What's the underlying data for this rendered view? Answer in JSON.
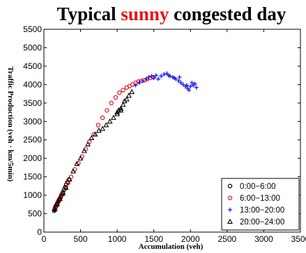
{
  "chart_data": {
    "type": "scatter",
    "title_parts": [
      {
        "text": "Typical ",
        "color": "#000000"
      },
      {
        "text": "sunny",
        "color": "#e8101a"
      },
      {
        "text": " congested day",
        "color": "#000000"
      }
    ],
    "xlabel": "Accumulation (veh)",
    "ylabel": "Traffic Production (veh · km/5min)",
    "xlim": [
      0,
      3500
    ],
    "ylim": [
      0,
      5500
    ],
    "xticks": [
      0,
      500,
      1000,
      1500,
      2000,
      2500,
      3000,
      3500
    ],
    "yticks": [
      0,
      500,
      1000,
      1500,
      2000,
      2500,
      3000,
      3500,
      4000,
      4500,
      5000,
      5500
    ],
    "grid": false,
    "legend_position": "bottom-right",
    "series": [
      {
        "name": "0:00−6:00",
        "marker": "circle-open",
        "color": "#000000",
        "points": [
          [
            140,
            580
          ],
          [
            145,
            610
          ],
          [
            150,
            640
          ],
          [
            155,
            660
          ],
          [
            160,
            700
          ],
          [
            165,
            690
          ],
          [
            170,
            720
          ],
          [
            175,
            740
          ],
          [
            180,
            760
          ],
          [
            185,
            780
          ],
          [
            190,
            810
          ],
          [
            200,
            850
          ],
          [
            210,
            880
          ],
          [
            220,
            920
          ],
          [
            230,
            960
          ],
          [
            240,
            1000
          ],
          [
            250,
            1040
          ],
          [
            260,
            1080
          ],
          [
            275,
            1150
          ],
          [
            290,
            1220
          ],
          [
            305,
            1290
          ],
          [
            320,
            1350
          ],
          [
            340,
            1420
          ]
        ]
      },
      {
        "name": "6:00−13:00",
        "marker": "circle-open",
        "color": "#e8101a",
        "points": [
          [
            150,
            620
          ],
          [
            175,
            720
          ],
          [
            200,
            830
          ],
          [
            230,
            940
          ],
          [
            260,
            1050
          ],
          [
            300,
            1200
          ],
          [
            330,
            1330
          ],
          [
            370,
            1500
          ],
          [
            420,
            1700
          ],
          [
            470,
            1870
          ],
          [
            520,
            2050
          ],
          [
            570,
            2250
          ],
          [
            620,
            2450
          ],
          [
            680,
            2650
          ],
          [
            740,
            2900
          ],
          [
            800,
            3100
          ],
          [
            860,
            3300
          ],
          [
            920,
            3500
          ],
          [
            980,
            3650
          ],
          [
            1030,
            3780
          ],
          [
            1080,
            3850
          ],
          [
            1130,
            3920
          ],
          [
            1170,
            3960
          ],
          [
            1210,
            4000
          ],
          [
            1250,
            4050
          ],
          [
            1290,
            4080
          ],
          [
            1330,
            4100
          ],
          [
            1370,
            4120
          ],
          [
            1410,
            4150
          ],
          [
            1450,
            4180
          ],
          [
            1490,
            4200
          ]
        ]
      },
      {
        "name": "13:00−20:00",
        "marker": "plus",
        "color": "#1a1ae6",
        "points": [
          [
            1250,
            3980
          ],
          [
            1300,
            4050
          ],
          [
            1350,
            4100
          ],
          [
            1400,
            4150
          ],
          [
            1430,
            4200
          ],
          [
            1470,
            4230
          ],
          [
            1500,
            4180
          ],
          [
            1530,
            4250
          ],
          [
            1560,
            4150
          ],
          [
            1600,
            4230
          ],
          [
            1640,
            4280
          ],
          [
            1680,
            4300
          ],
          [
            1720,
            4230
          ],
          [
            1760,
            4200
          ],
          [
            1800,
            4150
          ],
          [
            1840,
            4100
          ],
          [
            1870,
            4050
          ],
          [
            1900,
            4000
          ],
          [
            1930,
            3950
          ],
          [
            1960,
            3900
          ],
          [
            1980,
            3850
          ],
          [
            2000,
            3950
          ],
          [
            2020,
            4050
          ],
          [
            2040,
            3980
          ],
          [
            2060,
            4020
          ],
          [
            2080,
            3920
          ],
          [
            1700,
            4250
          ],
          [
            1780,
            4180
          ],
          [
            1850,
            4200
          ],
          [
            1950,
            3980
          ]
        ]
      },
      {
        "name": "20:00−24:00",
        "marker": "triangle-open",
        "color": "#000000",
        "points": [
          [
            150,
            620
          ],
          [
            180,
            760
          ],
          [
            220,
            900
          ],
          [
            260,
            1050
          ],
          [
            300,
            1200
          ],
          [
            350,
            1430
          ],
          [
            400,
            1650
          ],
          [
            450,
            1850
          ],
          [
            500,
            2000
          ],
          [
            550,
            2200
          ],
          [
            600,
            2380
          ],
          [
            650,
            2550
          ],
          [
            700,
            2650
          ],
          [
            750,
            2750
          ],
          [
            800,
            2800
          ],
          [
            850,
            2900
          ],
          [
            900,
            3000
          ],
          [
            950,
            3100
          ],
          [
            1000,
            3200
          ],
          [
            1020,
            3300
          ],
          [
            1050,
            3350
          ],
          [
            1080,
            3450
          ],
          [
            1100,
            3550
          ],
          [
            1130,
            3600
          ],
          [
            1160,
            3700
          ],
          [
            1200,
            3800
          ],
          [
            1000,
            3250
          ],
          [
            1050,
            3300
          ]
        ]
      }
    ]
  }
}
